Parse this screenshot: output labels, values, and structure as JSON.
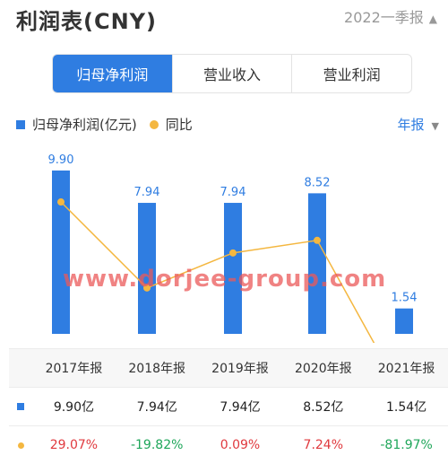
{
  "header": {
    "title": "利润表(CNY)",
    "period": "2022一季报",
    "period_caret": "▲"
  },
  "tabs": [
    {
      "label": "归母净利润",
      "active": true
    },
    {
      "label": "营业收入",
      "active": false
    },
    {
      "label": "营业利润",
      "active": false
    }
  ],
  "legend": {
    "series1": "归母净利润(亿元)",
    "series2": "同比"
  },
  "annual_selector": {
    "label": "年报",
    "caret": "▼"
  },
  "watermark": "www.dorjee-group.com",
  "colors": {
    "bar": "#2f7de1",
    "line": "#f4b740",
    "positive": "#e0393e",
    "negative": "#1fa65a"
  },
  "chart_data": {
    "type": "bar",
    "categories": [
      "2017年报",
      "2018年报",
      "2019年报",
      "2020年报",
      "2021年报"
    ],
    "series": [
      {
        "name": "归母净利润(亿元)",
        "type": "bar",
        "values": [
          9.9,
          7.94,
          7.94,
          8.52,
          1.54
        ],
        "labels": [
          "9.90",
          "7.94",
          "7.94",
          "8.52",
          "1.54"
        ]
      },
      {
        "name": "同比",
        "type": "line",
        "values": [
          29.07,
          -19.82,
          0.09,
          7.24,
          -81.97
        ]
      }
    ]
  },
  "table": {
    "headers": [
      "2017年报",
      "2018年报",
      "2019年报",
      "2020年报",
      "2021年报"
    ],
    "profit": [
      "9.90亿",
      "7.94亿",
      "7.94亿",
      "8.52亿",
      "1.54亿"
    ],
    "yoy": [
      "29.07%",
      "-19.82%",
      "0.09%",
      "7.24%",
      "-81.97%"
    ]
  }
}
